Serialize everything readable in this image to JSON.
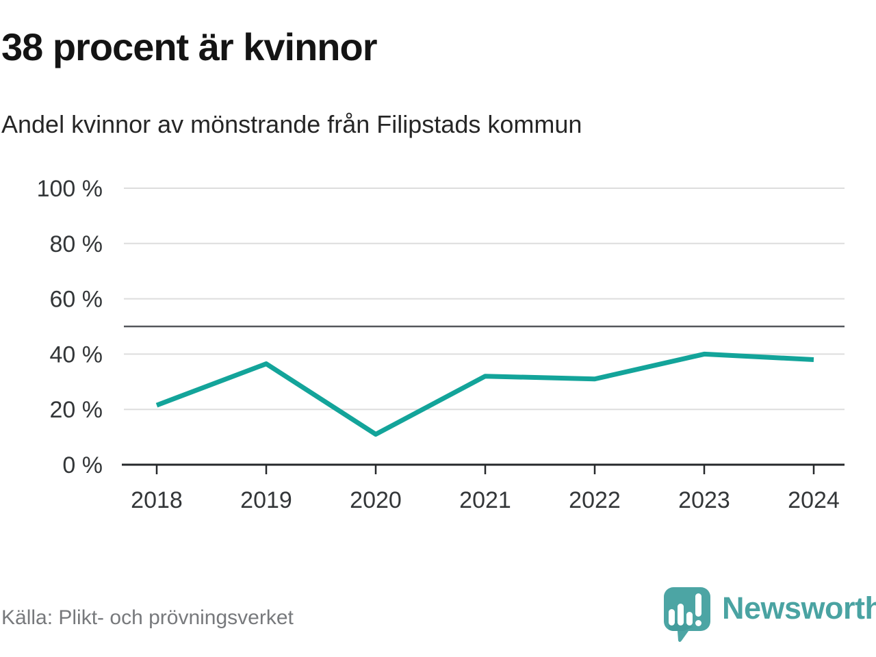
{
  "header": {
    "title": "38 procent är kvinnor",
    "subtitle": "Andel kvinnor av mönstrande från Filipstads kommun"
  },
  "chart_data": {
    "type": "line",
    "title": "38 procent är kvinnor",
    "subtitle": "Andel kvinnor av mönstrande från Filipstads kommun",
    "categories": [
      "2018",
      "2019",
      "2020",
      "2021",
      "2022",
      "2023",
      "2024"
    ],
    "values": [
      21.5,
      36.5,
      11,
      32,
      31,
      40,
      38
    ],
    "series_name": "Andel kvinnor av mönstrande",
    "xlabel": "",
    "ylabel": "",
    "ylim": [
      0,
      100
    ],
    "yticks": [
      0,
      20,
      40,
      60,
      80,
      100
    ],
    "ytick_suffix": " %",
    "reference_line": {
      "value": 50
    },
    "grid": true,
    "legend": "none",
    "colors": {
      "line": "#13a49a",
      "grid": "#dddddd",
      "reference": "#54575b",
      "axis": "#26282b",
      "tick_label": "#333638"
    }
  },
  "footer": {
    "source": "Källa: Plikt- och prövningsverket",
    "brand": {
      "name": "Newsworthy",
      "color": "#4aa3a2",
      "icon": "speech-bubble-bar-chart-icon"
    }
  }
}
